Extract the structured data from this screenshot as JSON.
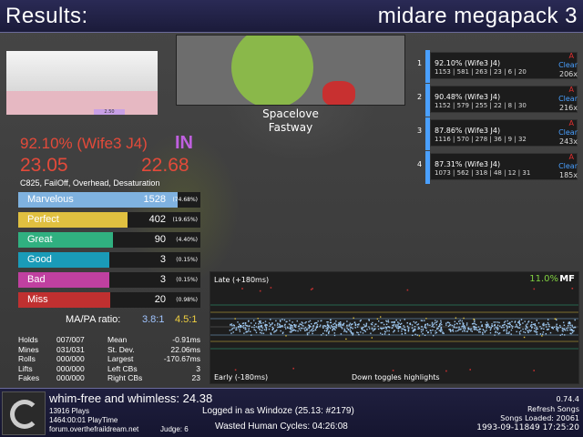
{
  "header": {
    "title": "Results:",
    "song": "midare megapack 3"
  },
  "banner": {
    "title": "Spacelove",
    "artist": "Fastway"
  },
  "life_graph": {
    "marker_label": "2.50"
  },
  "score": {
    "wife_pct": "92.10% (Wife3 J4)",
    "grade": "IN",
    "ssr_left": "23.05",
    "ssr_right": "22.68",
    "mods": "C825, FailOff, Overhead, Desaturation"
  },
  "judgments": [
    {
      "name": "Marvelous",
      "count": "1528",
      "pct": "(74.68%)",
      "fraction": 0.7468,
      "color": "#7fb2e0"
    },
    {
      "name": "Perfect",
      "count": "402",
      "pct": "(19.65%)",
      "fraction": 0.1965,
      "color": "#e0c040"
    },
    {
      "name": "Great",
      "count": "90",
      "pct": "(4.40%)",
      "fraction": 0.044,
      "color": "#30b080"
    },
    {
      "name": "Good",
      "count": "3",
      "pct": "(0.15%)",
      "fraction": 0.0015,
      "color": "#1a9bb8"
    },
    {
      "name": "Bad",
      "count": "3",
      "pct": "(0.15%)",
      "fraction": 0.0015,
      "color": "#c040a0"
    },
    {
      "name": "Miss",
      "count": "20",
      "pct": "(0.98%)",
      "fraction": 0.0098,
      "color": "#c03030"
    }
  ],
  "ratio": {
    "label": "MA/PA ratio:",
    "ma": "3.8:1",
    "pa": "4.5:1"
  },
  "stats_left": [
    {
      "name": "Holds",
      "value": "007/007"
    },
    {
      "name": "Mines",
      "value": "031/031"
    },
    {
      "name": "Rolls",
      "value": "000/000"
    },
    {
      "name": "Lifts",
      "value": "000/000"
    },
    {
      "name": "Fakes",
      "value": "000/000"
    }
  ],
  "stats_right": [
    {
      "name": "Mean",
      "value": "-0.91ms"
    },
    {
      "name": "St. Dev.",
      "value": "22.06ms"
    },
    {
      "name": "Largest",
      "value": "-170.67ms"
    },
    {
      "name": "Left CBs",
      "value": "3"
    },
    {
      "name": "Right CBs",
      "value": "23"
    }
  ],
  "scoreboard": [
    {
      "rank": "1",
      "pct": "92.10% (Wife3 J4)",
      "detail": "1153 | 581 | 263 | 23 | 6 | 20",
      "grade": "A",
      "clear": "Clear",
      "combo": "206x"
    },
    {
      "rank": "2",
      "pct": "90.48% (Wife3 J4)",
      "detail": "1152 | 579 | 255 | 22 | 8 | 30",
      "grade": "A",
      "clear": "Clear",
      "combo": "216x"
    },
    {
      "rank": "3",
      "pct": "87.86% (Wife3 J4)",
      "detail": "1116 | 570 | 278 | 36 | 9 | 32",
      "grade": "A",
      "clear": "Clear",
      "combo": "243x"
    },
    {
      "rank": "4",
      "pct": "87.31% (Wife3 J4)",
      "detail": "1073 | 562 | 318 | 48 | 12 | 31",
      "grade": "A",
      "clear": "Clear",
      "combo": "185x"
    }
  ],
  "offset_plot": {
    "late_label": "Late (+180ms)",
    "early_label": "Early (-180ms)",
    "mf_pct": "11.0%",
    "mf_label": "MF",
    "hint": "Down toggles highlights"
  },
  "footer": {
    "profile": "whim-free and whimless: 24.38",
    "plays": "13916 Plays",
    "playtime": "1464:00:01 PlayTime",
    "site": "forum.overthefraildream.net",
    "judge": "Judge: 6",
    "login": "Logged in as Windoze (25.13: #2179)",
    "wasted": "Wasted Human Cycles: 04:26:08",
    "version": "0.74.4",
    "refresh": "Refresh Songs",
    "songs_loaded": "Songs Loaded: 20061",
    "clock": "1993-09-11849 17:25:20"
  },
  "colors": {
    "header_bg": "#1b1b3a",
    "score_red": "#e34a3a",
    "grade_purple": "#c060e0",
    "clear_blue": "#4aa0ff"
  }
}
